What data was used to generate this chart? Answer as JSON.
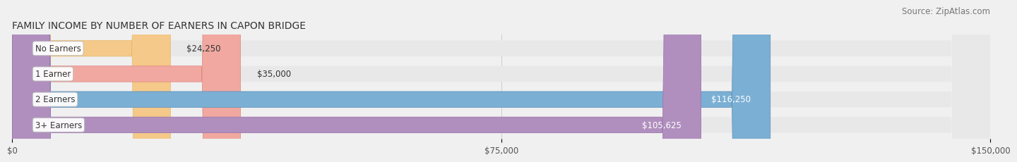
{
  "title": "FAMILY INCOME BY NUMBER OF EARNERS IN CAPON BRIDGE",
  "source": "Source: ZipAtlas.com",
  "categories": [
    "No Earners",
    "1 Earner",
    "2 Earners",
    "3+ Earners"
  ],
  "values": [
    24250,
    35000,
    116250,
    105625
  ],
  "bar_colors": [
    "#f5c98a",
    "#f0a8a0",
    "#7bafd4",
    "#b08fbe"
  ],
  "bar_edge_colors": [
    "#e8b86a",
    "#e08880",
    "#5a8fb8",
    "#9870aa"
  ],
  "label_colors": [
    "#555555",
    "#555555",
    "#ffffff",
    "#ffffff"
  ],
  "value_labels": [
    "$24,250",
    "$35,000",
    "$116,250",
    "$105,625"
  ],
  "x_ticks": [
    0,
    75000,
    150000
  ],
  "x_tick_labels": [
    "$0",
    "$75,000",
    "$150,000"
  ],
  "xlim": [
    0,
    150000
  ],
  "background_color": "#f0f0f0",
  "bar_bg_color": "#e8e8e8",
  "title_fontsize": 10,
  "source_fontsize": 8.5,
  "label_fontsize": 8.5,
  "value_fontsize": 8.5,
  "tick_fontsize": 8.5
}
